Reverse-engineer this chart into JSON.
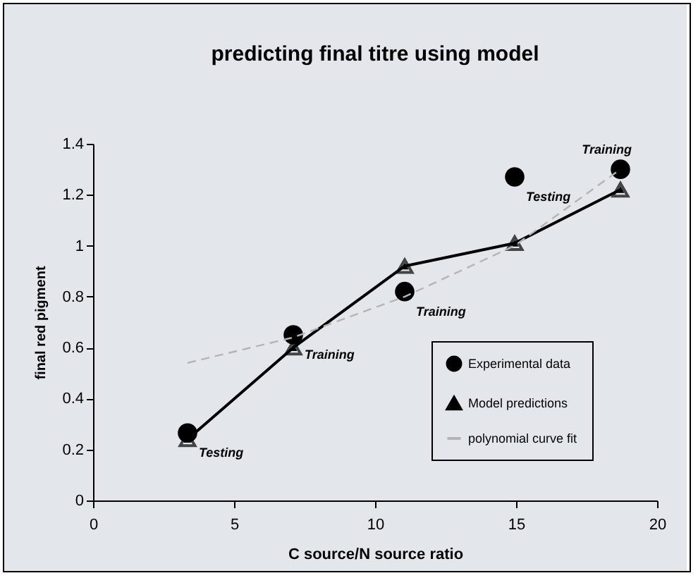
{
  "chart_data": {
    "type": "scatter",
    "title": "predicting final titre using model",
    "xlabel": "C source/N source ratio",
    "ylabel": "final red pigment",
    "x": [
      3.35,
      7.1,
      11.05,
      14.95,
      18.7
    ],
    "series": [
      {
        "name": "Experimental data",
        "type": "scatter",
        "color": "#000000",
        "marker": "circle",
        "values": [
          0.265,
          0.65,
          0.82,
          1.27,
          1.3
        ]
      },
      {
        "name": "Model predictions",
        "type": "line",
        "color": "#000000",
        "marker": "triangle",
        "values": [
          0.24,
          0.6,
          0.92,
          1.01,
          1.22
        ]
      },
      {
        "name": "polynomial curve fit",
        "type": "line",
        "color": "#b4b4b4",
        "line_style": "dashed",
        "marker": "none",
        "values": [
          0.54,
          0.64,
          0.8,
          1.0,
          1.3
        ]
      }
    ],
    "annotations": [
      {
        "text": "Testing",
        "x": 3.35,
        "y": 0.265
      },
      {
        "text": "Training",
        "x": 7.1,
        "y": 0.65
      },
      {
        "text": "Training",
        "x": 11.05,
        "y": 0.82
      },
      {
        "text": "Testing",
        "x": 14.95,
        "y": 1.27
      },
      {
        "text": "Training",
        "x": 18.7,
        "y": 1.3
      }
    ],
    "xlim": [
      0,
      20
    ],
    "xticks": [
      0,
      5,
      10,
      15,
      20
    ],
    "ylim": [
      0,
      1.4
    ],
    "yticks": [
      0,
      0.2,
      0.4,
      0.6,
      0.8,
      1,
      1.2,
      1.4
    ],
    "grid": false,
    "legend": "bottom right"
  }
}
